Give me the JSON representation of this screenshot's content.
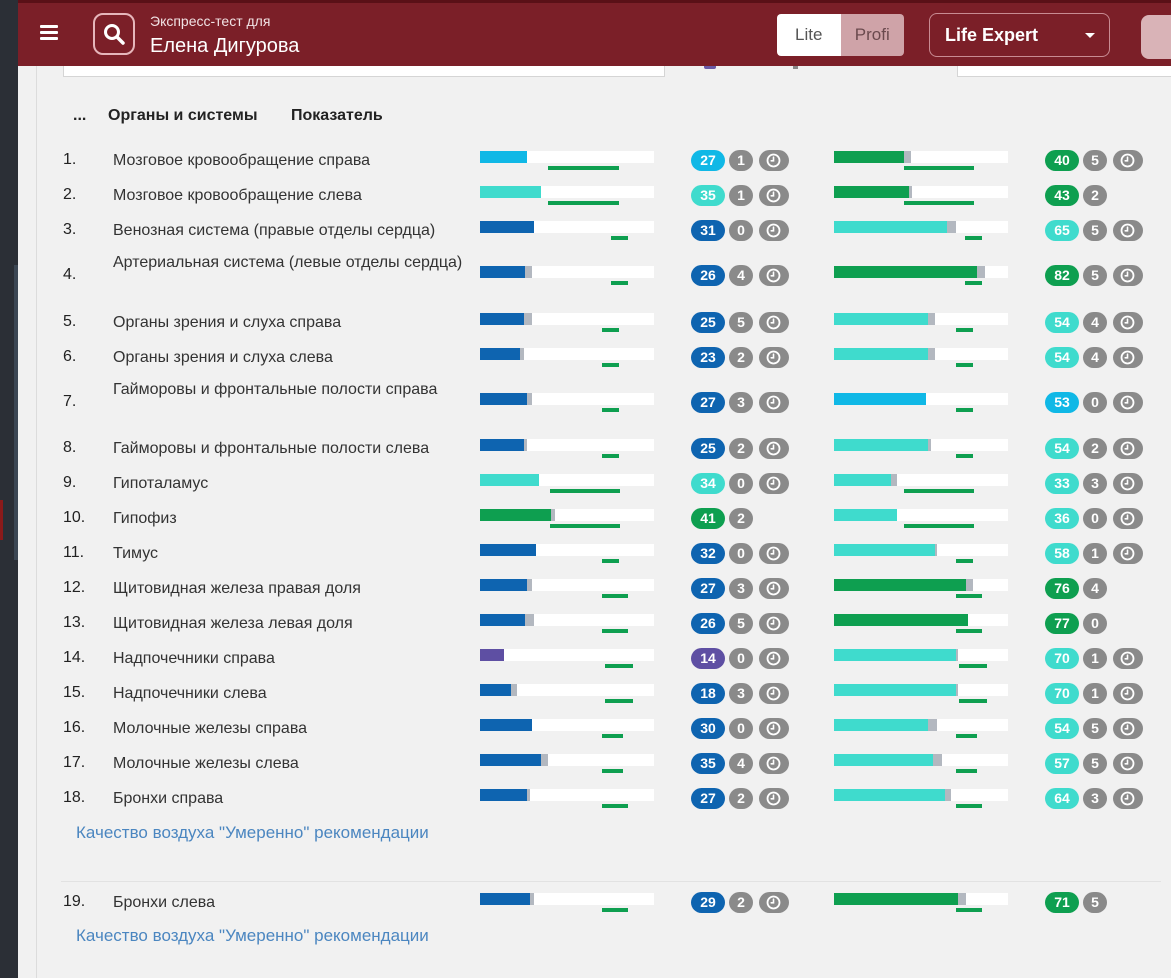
{
  "colors": {
    "header_bg": "#7b1f28",
    "blue": "#0e64b0",
    "cyan": "#10b8e6",
    "teal": "#3fdbcd",
    "green": "#0e9f50",
    "purple": "#5e4fa3",
    "gray": "#8a8a8a",
    "link": "#4b86c0"
  },
  "header": {
    "menu_icon": "hamburger-icon",
    "search_icon": "search-icon",
    "subtitle": "Экспресс-тест для",
    "patient": "Елена Дигурова",
    "mode_lite": "Lite",
    "mode_profi": "Profi",
    "expert_select": "Life Expert",
    "expert_caret_icon": "caret-down-icon"
  },
  "table": {
    "col_dots": "...",
    "col_organs": "Органы и системы",
    "col_indicator": "Показатель"
  },
  "rows": [
    {
      "n": "1.",
      "name": "Мозговое кровообращение справа",
      "a": {
        "v": "27",
        "c": "1",
        "t": true,
        "color": "cyan",
        "fill": 0.27,
        "gray": 0,
        "line": [
          0.39,
          0.8
        ]
      },
      "b": {
        "v": "40",
        "c": "5",
        "t": true,
        "color": "green",
        "fill": 0.4,
        "gray": 0.44,
        "line": [
          0.4,
          0.8
        ]
      }
    },
    {
      "n": "2.",
      "name": "Мозговое кровообращение слева",
      "a": {
        "v": "35",
        "c": "1",
        "t": true,
        "color": "teal",
        "fill": 0.35,
        "gray": 0,
        "line": [
          0.39,
          0.8
        ]
      },
      "b": {
        "v": "43",
        "c": "2",
        "t": false,
        "color": "green",
        "fill": 0.43,
        "gray": 0.45,
        "line": [
          0.4,
          0.8
        ]
      }
    },
    {
      "n": "3.",
      "name": "Венозная система (правые отделы сердца)",
      "a": {
        "v": "31",
        "c": "0",
        "t": true,
        "color": "blue",
        "fill": 0.31,
        "gray": 0,
        "line": [
          0.75,
          0.85
        ]
      },
      "b": {
        "v": "65",
        "c": "5",
        "t": true,
        "color": "teal",
        "fill": 0.65,
        "gray": 0.7,
        "line": [
          0.75,
          0.85
        ]
      }
    },
    {
      "n": "4.",
      "name": "Артериальная система (левые отделы сердца)",
      "two": true,
      "a": {
        "v": "26",
        "c": "4",
        "t": true,
        "color": "blue",
        "fill": 0.26,
        "gray": 0.3,
        "line": [
          0.75,
          0.85
        ]
      },
      "b": {
        "v": "82",
        "c": "5",
        "t": true,
        "color": "green",
        "fill": 0.82,
        "gray": 0.87,
        "line": [
          0.75,
          0.85
        ]
      }
    },
    {
      "n": "5.",
      "name": "Органы зрения и слуха справа",
      "a": {
        "v": "25",
        "c": "5",
        "t": true,
        "color": "blue",
        "fill": 0.25,
        "gray": 0.3,
        "line": [
          0.7,
          0.8
        ]
      },
      "b": {
        "v": "54",
        "c": "4",
        "t": true,
        "color": "teal",
        "fill": 0.54,
        "gray": 0.58,
        "line": [
          0.7,
          0.8
        ]
      }
    },
    {
      "n": "6.",
      "name": "Органы зрения и слуха слева",
      "a": {
        "v": "23",
        "c": "2",
        "t": true,
        "color": "blue",
        "fill": 0.23,
        "gray": 0.25,
        "line": [
          0.7,
          0.8
        ]
      },
      "b": {
        "v": "54",
        "c": "4",
        "t": true,
        "color": "teal",
        "fill": 0.54,
        "gray": 0.58,
        "line": [
          0.7,
          0.8
        ]
      }
    },
    {
      "n": "7.",
      "name": "Гайморовы и фронтальные полости справа",
      "two": true,
      "a": {
        "v": "27",
        "c": "3",
        "t": true,
        "color": "blue",
        "fill": 0.27,
        "gray": 0.3,
        "line": [
          0.7,
          0.8
        ]
      },
      "b": {
        "v": "53",
        "c": "0",
        "t": true,
        "color": "cyan",
        "fill": 0.53,
        "gray": 0,
        "line": [
          0.7,
          0.8
        ]
      }
    },
    {
      "n": "8.",
      "name": "Гайморовы и фронтальные полости слева",
      "a": {
        "v": "25",
        "c": "2",
        "t": true,
        "color": "blue",
        "fill": 0.25,
        "gray": 0.27,
        "line": [
          0.7,
          0.8
        ]
      },
      "b": {
        "v": "54",
        "c": "2",
        "t": true,
        "color": "teal",
        "fill": 0.54,
        "gray": 0.56,
        "line": [
          0.7,
          0.8
        ]
      }
    },
    {
      "n": "9.",
      "name": "Гипоталамус",
      "a": {
        "v": "34",
        "c": "0",
        "t": true,
        "color": "teal",
        "fill": 0.34,
        "gray": 0,
        "line": [
          0.4,
          0.8
        ]
      },
      "b": {
        "v": "33",
        "c": "3",
        "t": true,
        "color": "teal",
        "fill": 0.33,
        "gray": 0.36,
        "line": [
          0.4,
          0.8
        ]
      }
    },
    {
      "n": "10.",
      "name": "Гипофиз",
      "a": {
        "v": "41",
        "c": "2",
        "t": false,
        "color": "green",
        "fill": 0.41,
        "gray": 0.43,
        "line": [
          0.4,
          0.8
        ]
      },
      "b": {
        "v": "36",
        "c": "0",
        "t": true,
        "color": "teal",
        "fill": 0.36,
        "gray": 0,
        "line": [
          0.4,
          0.8
        ]
      }
    },
    {
      "n": "11.",
      "name": "Тимус",
      "a": {
        "v": "32",
        "c": "0",
        "t": true,
        "color": "blue",
        "fill": 0.32,
        "gray": 0,
        "line": [
          0.7,
          0.8
        ]
      },
      "b": {
        "v": "58",
        "c": "1",
        "t": true,
        "color": "teal",
        "fill": 0.58,
        "gray": 0.59,
        "line": [
          0.7,
          0.8
        ]
      }
    },
    {
      "n": "12.",
      "name": "Щитовидная железа правая доля",
      "a": {
        "v": "27",
        "c": "3",
        "t": true,
        "color": "blue",
        "fill": 0.27,
        "gray": 0.3,
        "line": [
          0.7,
          0.85
        ]
      },
      "b": {
        "v": "76",
        "c": "4",
        "t": false,
        "color": "green",
        "fill": 0.76,
        "gray": 0.8,
        "line": [
          0.7,
          0.85
        ]
      }
    },
    {
      "n": "13.",
      "name": "Щитовидная железа левая доля",
      "a": {
        "v": "26",
        "c": "5",
        "t": true,
        "color": "blue",
        "fill": 0.26,
        "gray": 0.31,
        "line": [
          0.7,
          0.85
        ]
      },
      "b": {
        "v": "77",
        "c": "0",
        "t": false,
        "color": "green",
        "fill": 0.77,
        "gray": 0,
        "line": [
          0.7,
          0.85
        ]
      }
    },
    {
      "n": "14.",
      "name": "Надпочечники справа",
      "a": {
        "v": "14",
        "c": "0",
        "t": true,
        "color": "purple",
        "fill": 0.14,
        "gray": 0,
        "line": [
          0.72,
          0.88
        ]
      },
      "b": {
        "v": "70",
        "c": "1",
        "t": true,
        "color": "teal",
        "fill": 0.7,
        "gray": 0.71,
        "line": [
          0.72,
          0.88
        ]
      }
    },
    {
      "n": "15.",
      "name": "Надпочечники слева",
      "a": {
        "v": "18",
        "c": "3",
        "t": true,
        "color": "blue",
        "fill": 0.18,
        "gray": 0.21,
        "line": [
          0.72,
          0.88
        ]
      },
      "b": {
        "v": "70",
        "c": "1",
        "t": true,
        "color": "teal",
        "fill": 0.7,
        "gray": 0.71,
        "line": [
          0.72,
          0.88
        ]
      }
    },
    {
      "n": "16.",
      "name": "Молочные железы справа",
      "a": {
        "v": "30",
        "c": "0",
        "t": true,
        "color": "blue",
        "fill": 0.3,
        "gray": 0,
        "line": [
          0.7,
          0.82
        ]
      },
      "b": {
        "v": "54",
        "c": "5",
        "t": true,
        "color": "teal",
        "fill": 0.54,
        "gray": 0.59,
        "line": [
          0.7,
          0.82
        ]
      }
    },
    {
      "n": "17.",
      "name": "Молочные железы слева",
      "a": {
        "v": "35",
        "c": "4",
        "t": true,
        "color": "blue",
        "fill": 0.35,
        "gray": 0.39,
        "line": [
          0.7,
          0.82
        ]
      },
      "b": {
        "v": "57",
        "c": "5",
        "t": true,
        "color": "teal",
        "fill": 0.57,
        "gray": 0.62,
        "line": [
          0.7,
          0.82
        ]
      }
    },
    {
      "n": "18.",
      "name": "Бронхи справа",
      "a": {
        "v": "27",
        "c": "2",
        "t": true,
        "color": "blue",
        "fill": 0.27,
        "gray": 0.29,
        "line": [
          0.7,
          0.85
        ]
      },
      "b": {
        "v": "64",
        "c": "3",
        "t": true,
        "color": "teal",
        "fill": 0.64,
        "gray": 0.67,
        "line": [
          0.7,
          0.85
        ]
      }
    },
    {
      "n": "19.",
      "name": "Бронхи слева",
      "a": {
        "v": "29",
        "c": "2",
        "t": true,
        "color": "blue",
        "fill": 0.29,
        "gray": 0.31,
        "line": [
          0.7,
          0.85
        ]
      },
      "b": {
        "v": "71",
        "c": "5",
        "t": false,
        "color": "green",
        "fill": 0.71,
        "gray": 0.76,
        "line": [
          0.7,
          0.85
        ]
      }
    }
  ],
  "links": [
    {
      "text": "Качество воздуха \"Умеренно\" рекомендации"
    },
    {
      "text": "Качество воздуха \"Умеренно\" рекомендации"
    }
  ]
}
